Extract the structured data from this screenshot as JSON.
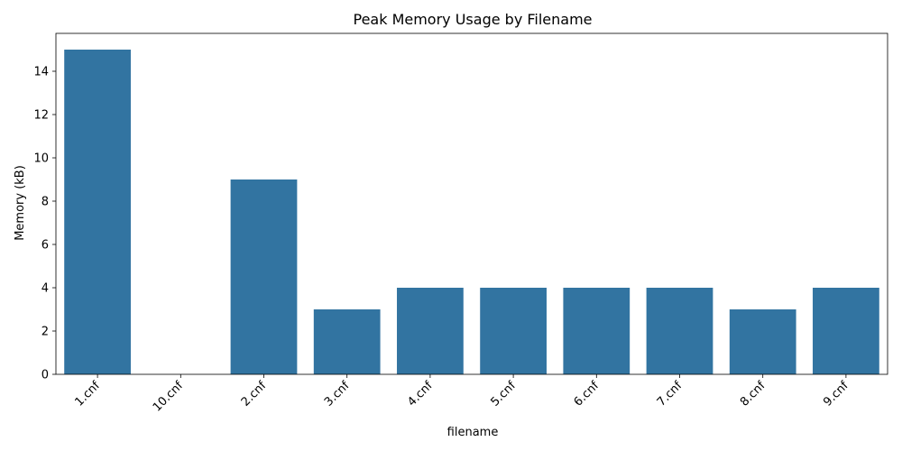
{
  "colors": {
    "bar": "#3274a1",
    "axis": "#000000",
    "background": "#ffffff"
  },
  "chart_data": {
    "type": "bar",
    "title": "Peak Memory Usage by Filename",
    "xlabel": "filename",
    "ylabel": "Memory (kB)",
    "categories": [
      "1.cnf",
      "10.cnf",
      "2.cnf",
      "3.cnf",
      "4.cnf",
      "5.cnf",
      "6.cnf",
      "7.cnf",
      "8.cnf",
      "9.cnf"
    ],
    "values": [
      15,
      0,
      9,
      3,
      4,
      4,
      4,
      4,
      3,
      4
    ],
    "ylim": [
      0,
      15.75
    ],
    "yticks": [
      0,
      2,
      4,
      6,
      8,
      10,
      12,
      14
    ],
    "grid": false,
    "legend": "none"
  }
}
